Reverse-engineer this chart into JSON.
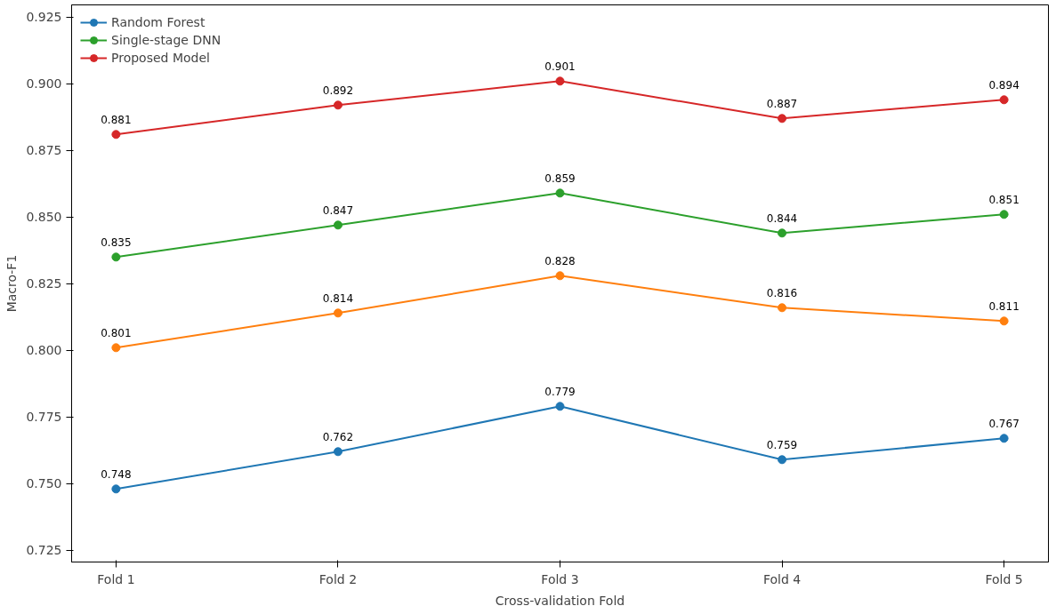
{
  "chart_data": {
    "type": "line",
    "xlabel": "Cross-validation Fold",
    "ylabel": "Macro-F1",
    "categories": [
      "Fold 1",
      "Fold 2",
      "Fold 3",
      "Fold 4",
      "Fold 5"
    ],
    "series": [
      {
        "name": "Random Forest",
        "color": "#1f77b4",
        "values": [
          0.748,
          0.762,
          0.779,
          0.759,
          0.767
        ]
      },
      {
        "color": "#ff7f0e",
        "values": [
          0.801,
          0.814,
          0.828,
          0.816,
          0.811
        ]
      },
      {
        "name": "Single-stage DNN",
        "color": "#2ca02c",
        "values": [
          0.835,
          0.847,
          0.859,
          0.844,
          0.851
        ]
      },
      {
        "name": "Proposed Model",
        "color": "#d62728",
        "values": [
          0.881,
          0.892,
          0.901,
          0.887,
          0.894
        ]
      }
    ],
    "ylim": [
      0.7206,
      0.9296
    ],
    "yticks": [
      {
        "value": 0.725,
        "label": "0.725"
      },
      {
        "value": 0.75,
        "label": "0.750"
      },
      {
        "value": 0.775,
        "label": "0.775"
      },
      {
        "value": 0.8,
        "label": "0.800"
      },
      {
        "value": 0.825,
        "label": "0.825"
      },
      {
        "value": 0.85,
        "label": "0.850"
      },
      {
        "value": 0.875,
        "label": "0.875"
      },
      {
        "value": 0.9,
        "label": "0.900"
      },
      {
        "value": 0.925,
        "label": "0.925"
      }
    ],
    "grid": false,
    "legend": "top left",
    "marker": "circle",
    "line_style": "solid",
    "data_labels": true
  }
}
